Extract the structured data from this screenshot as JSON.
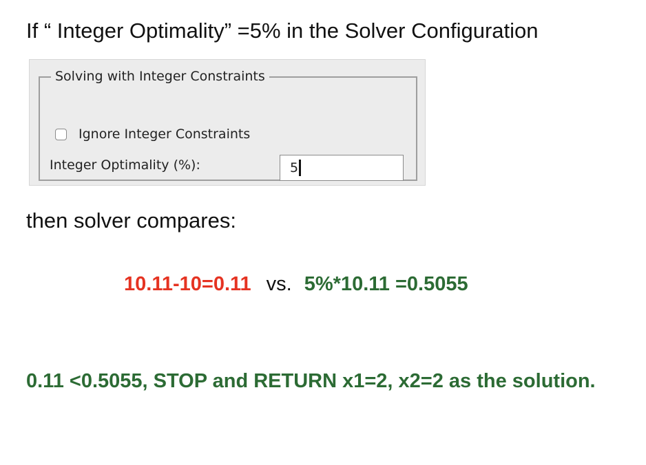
{
  "headline": "If “ Integer Optimality” =5% in the Solver Configuration",
  "dialog": {
    "group_title": "Solving with Integer Constraints",
    "checkbox": {
      "label": "Ignore Integer Constraints",
      "checked": false
    },
    "optimality_field": {
      "label": "Integer Optimality (%):",
      "value": "5"
    }
  },
  "intro_text": "then solver compares:",
  "comparison": {
    "left": "10.11-10=0.11",
    "middle": "vs.",
    "right": "5%*10.11 =0.5055",
    "left_color": "#e53322",
    "right_color": "#2c6b34"
  },
  "conclusion": "0.11 <0.5055, STOP and RETURN x1=2, x2=2 as the solution."
}
